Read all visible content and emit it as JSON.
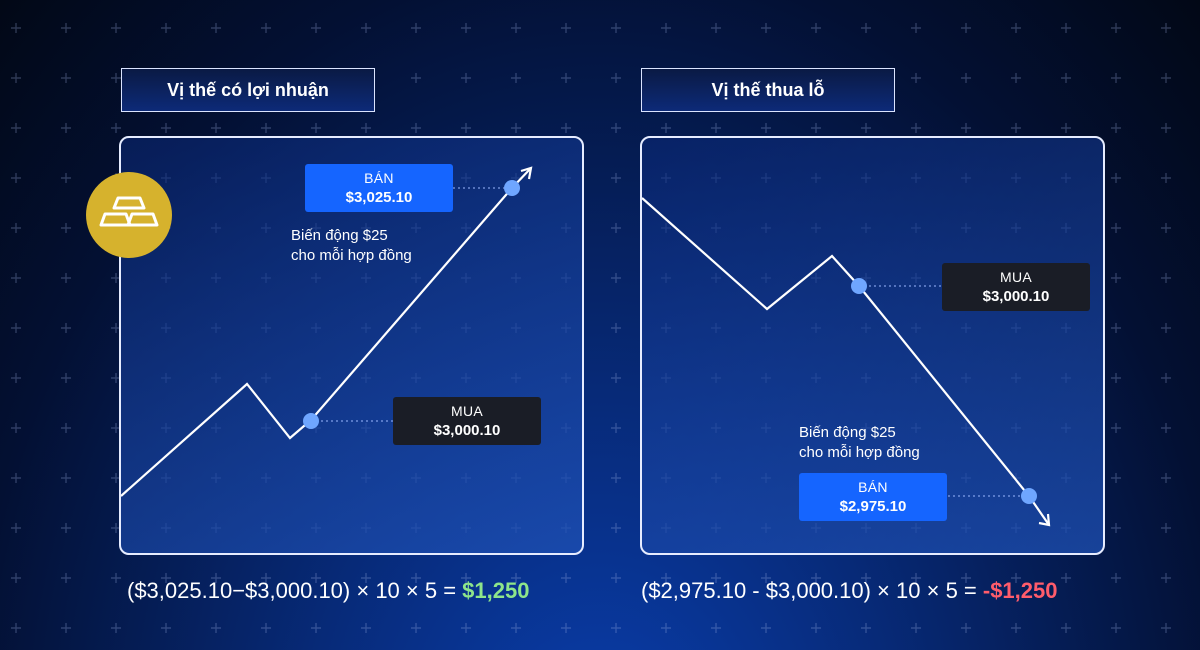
{
  "profit": {
    "title": "Vị thế có lợi nhuận",
    "sell": {
      "side": "BÁN",
      "price": "$3,025.10"
    },
    "buy": {
      "side": "MUA",
      "price": "$3,000.10"
    },
    "note_line1": "Biến động $25",
    "note_line2": "cho mỗi hợp đồng",
    "formula_text": "($3,025.10−$3,000.10) × 10 × 5 = ",
    "result": "$1,250"
  },
  "loss": {
    "title": "Vị thế thua lỗ",
    "buy": {
      "side": "MUA",
      "price": "$3,000.10"
    },
    "sell": {
      "side": "BÁN",
      "price": "$2,975.10"
    },
    "note_line1": "Biến động $25",
    "note_line2": "cho mỗi hợp đồng",
    "formula_text": "($2,975.10 - $3,000.10) × 10 × 5 = ",
    "result": "-$1,250"
  },
  "icons": {
    "gold": "gold-bars-icon"
  },
  "colors": {
    "gain": "#8ee58a",
    "loss": "#ff5c6b",
    "sell": "#1565ff",
    "buy": "#1a1d26",
    "point": "#6fa6ff"
  }
}
